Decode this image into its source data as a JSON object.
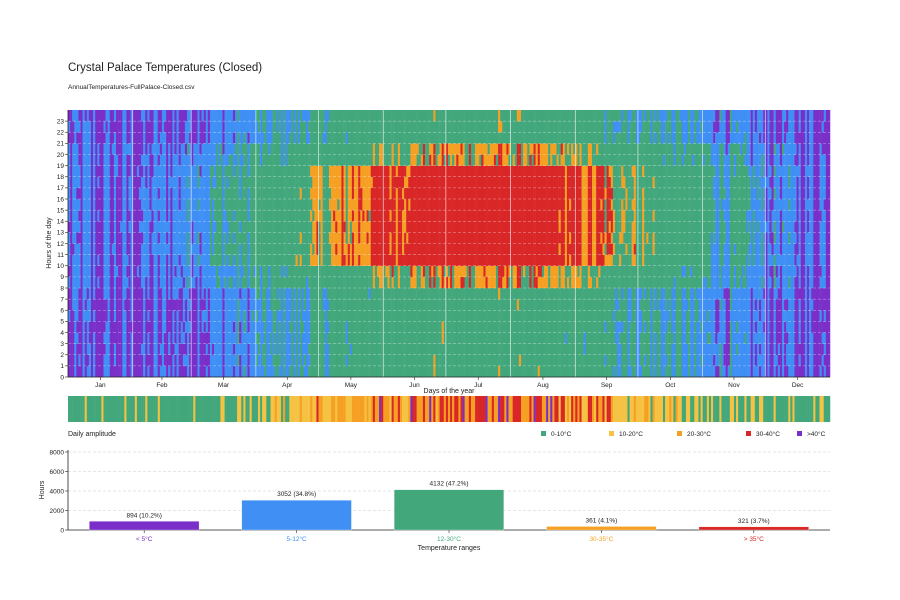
{
  "title": "Crystal Palace Temperatures (Closed)",
  "subtitle": "AnnualTemperatures-FullPalace-Closed.csv",
  "colors": {
    "cold": "#7b2fc9",
    "cool": "#3f8ff5",
    "mild": "#43a77c",
    "warm": "#f5a023",
    "hot": "#d92626",
    "amp_low": "#43a77c",
    "amp_mid": "#f5c243",
    "amp_high": "#f5a023",
    "amp_vhigh": "#d92626",
    "amp_max": "#7b2fc9"
  },
  "chart_data": [
    {
      "type": "heatmap",
      "title": "",
      "xlabel": "Days of the year",
      "ylabel": "Hours of the day",
      "x_tick_labels": [
        "Jan",
        "Feb",
        "Mar",
        "Apr",
        "May",
        "Jun",
        "Jul",
        "Aug",
        "Sep",
        "Oct",
        "Nov",
        "Dec"
      ],
      "y_tick_labels": [
        "0",
        "1",
        "2",
        "3",
        "4",
        "5",
        "6",
        "7",
        "8",
        "9",
        "10",
        "11",
        "12",
        "13",
        "14",
        "15",
        "16",
        "17",
        "18",
        "19",
        "20",
        "21",
        "22",
        "23"
      ],
      "xlim": [
        1,
        365
      ],
      "ylim": [
        0,
        24
      ],
      "grid": true,
      "categories": [
        "< 5°C",
        "5-12°C",
        "12-30°C",
        "30-35°C",
        "> 35°C"
      ]
    },
    {
      "type": "heatmap",
      "title": "Daily amplitude",
      "legend_position": "bottom-right",
      "legend": [
        "0-10°C",
        "10-20°C",
        "20-30°C",
        "30-40°C",
        ">40°C"
      ]
    },
    {
      "type": "bar",
      "categories": [
        "< 5°C",
        "5-12°C",
        "12-30°C",
        "30-35°C",
        "> 35°C"
      ],
      "values": [
        894,
        3052,
        4132,
        361,
        321
      ],
      "data_labels": [
        "894 (10.2%)",
        "3052 (34.8%)",
        "4132 (47.2%)",
        "361 (4.1%)",
        "321 (3.7%)"
      ],
      "xlabel": "Temperature ranges",
      "ylabel": "Hours",
      "ylim": [
        0,
        8000
      ],
      "y_ticks": [
        "0",
        "2000",
        "4000",
        "6000",
        "8000"
      ],
      "grid": true
    }
  ]
}
